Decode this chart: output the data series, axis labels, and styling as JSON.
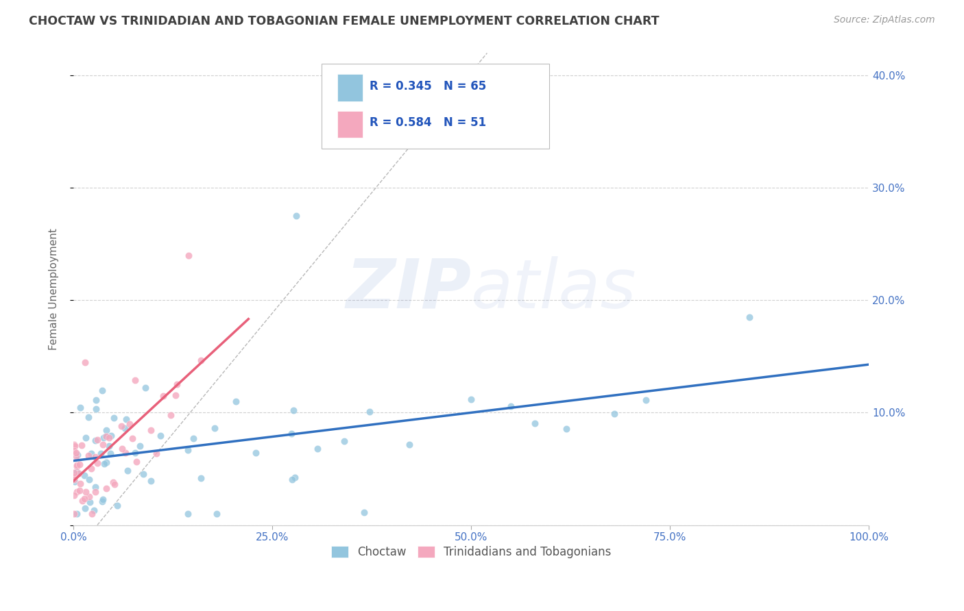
{
  "title": "CHOCTAW VS TRINIDADIAN AND TOBAGONIAN FEMALE UNEMPLOYMENT CORRELATION CHART",
  "source": "Source: ZipAtlas.com",
  "ylabel": "Female Unemployment",
  "watermark_zip": "ZIP",
  "watermark_atlas": "atlas",
  "choctaw_R": 0.345,
  "choctaw_N": 65,
  "trinidadian_R": 0.584,
  "trinidadian_N": 51,
  "choctaw_color": "#92c5de",
  "trinidadian_color": "#f4a8be",
  "trinidadian_line_color": "#e8607a",
  "choctaw_line_color": "#3070c0",
  "bg_color": "#ffffff",
  "grid_color": "#d0d0d0",
  "axis_color": "#4472c4",
  "title_color": "#404040",
  "source_color": "#999999",
  "ylabel_color": "#666666",
  "diagonal_color": "#b0b0b0",
  "legend_text_color": "#2255bb",
  "xlim": [
    0,
    100
  ],
  "ylim": [
    0,
    42
  ],
  "xtick_vals": [
    0,
    25,
    50,
    75,
    100
  ],
  "xticklabels": [
    "0.0%",
    "25.0%",
    "50.0%",
    "75.0%",
    "100.0%"
  ],
  "ytick_vals": [
    0,
    10,
    20,
    30,
    40
  ],
  "yticklabels": [
    "",
    "10.0%",
    "20.0%",
    "30.0%",
    "40.0%"
  ]
}
